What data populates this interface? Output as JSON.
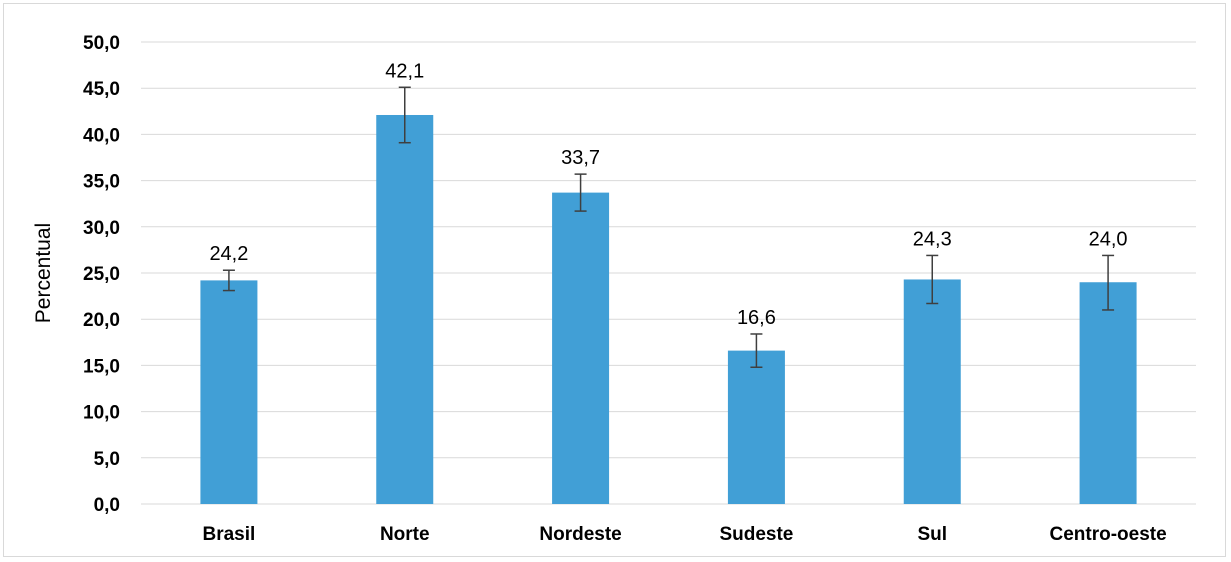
{
  "chart_data": {
    "type": "bar",
    "categories": [
      "Brasil",
      "Norte",
      "Nordeste",
      "Sudeste",
      "Sul",
      "Centro-oeste"
    ],
    "values": [
      24.2,
      42.1,
      33.7,
      16.6,
      24.3,
      24.0
    ],
    "value_labels": [
      "24,2",
      "42,1",
      "33,7",
      "16,6",
      "24,3",
      "24,0"
    ],
    "error_low": [
      23.1,
      39.1,
      31.7,
      14.8,
      21.7,
      21.0
    ],
    "error_high": [
      25.3,
      45.1,
      35.7,
      18.4,
      26.9,
      26.9
    ],
    "title": "",
    "xlabel": "",
    "ylabel": "Percentual",
    "ylim": [
      0,
      50
    ],
    "yticks": [
      0,
      5,
      10,
      15,
      20,
      25,
      30,
      35,
      40,
      45,
      50
    ],
    "ytick_labels": [
      "0,0",
      "5,0",
      "10,0",
      "15,0",
      "20,0",
      "25,0",
      "30,0",
      "35,0",
      "40,0",
      "45,0",
      "50,0"
    ],
    "grid": true,
    "legend": "none",
    "bar_color": "#419fd6"
  }
}
